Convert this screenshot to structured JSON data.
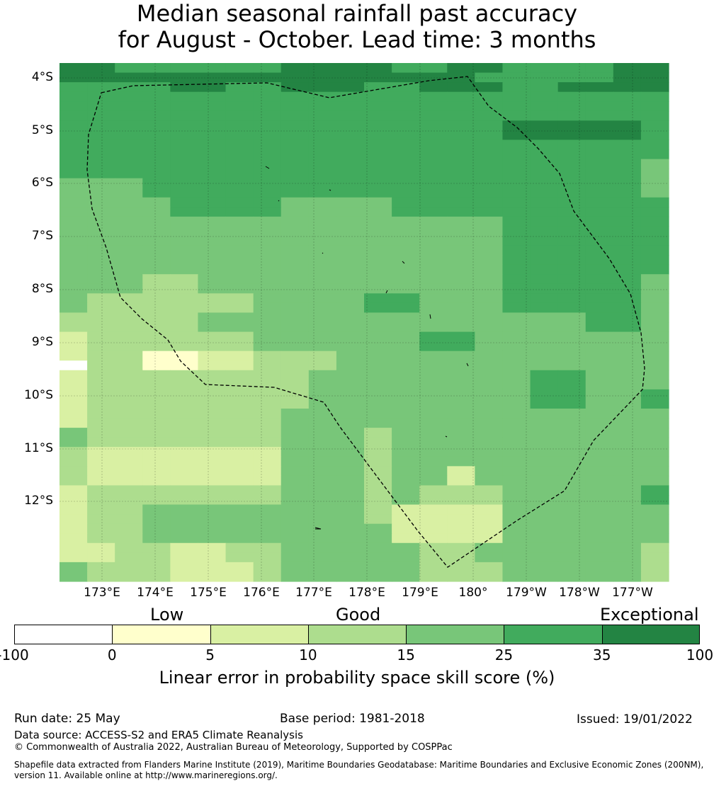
{
  "title": {
    "line1": "Median seasonal rainfall past accuracy",
    "line2": "for August - October. Lead time: 3 months"
  },
  "map": {
    "lat_labels": [
      "4°S",
      "5°S",
      "6°S",
      "7°S",
      "8°S",
      "9°S",
      "10°S",
      "11°S",
      "12°S"
    ],
    "lon_labels": [
      "173°E",
      "174°E",
      "175°E",
      "176°E",
      "177°E",
      "178°E",
      "179°E",
      "180°",
      "179°W",
      "178°W",
      "177°W"
    ],
    "colors": [
      "#ffffff",
      "#ffffcc",
      "#d9f0a3",
      "#addd8e",
      "#78c679",
      "#41ab5d",
      "#238443"
    ],
    "grid_rows": [
      "6655555566665566555566",
      "6666666666666665555566",
      "5555665566655666556666",
      "5555555555555555555555",
      "5555555555555555555555",
      "5555555555555555555555",
      "5555555555555555666665",
      "5555555555555555666665",
      "5555555555555555555555",
      "5555555555555555555555",
      "5555555555555555555554",
      "5555555555555555555554",
      "4445555555555555555554",
      "4445555555555555555554",
      "4444555544445555555555",
      "4444555544445555555555",
      "4444444444444444555555",
      "4444444444444444555555",
      "4444444444444444555555",
      "4444444444444444555555",
      "4444444444444444555555",
      "4444444444444444555555",
      "4443344444444444555554",
      "4443344444444444555554",
      "4333333444455444555554",
      "4333333444455444555554",
      "3333344444444444444554",
      "3333344444444444444554",
      "2333333444444554444444",
      "2333333444444554444444",
      "2331122333444444444444",
      "0331122333444444444444",
      "2333333334444444455444",
      "2333333334444444455444",
      "2333333334444444455445",
      "2333333334444444455445",
      "2333333344444444444444",
      "2333333344444444444444",
      "4333333344434444444444",
      "4333333344434444444444",
      "3222222244434444444444",
      "3222222244434444444444",
      "3222222244434424444444",
      "3222222244434424444444",
      "2333333344434333444445",
      "2333333344434333444445",
      "2334444444432222444444",
      "2334444444432222444444",
      "2334444444442222444444",
      "2334444444442222444444",
      "2233223344444334444443",
      "2233223344444334444443",
      "4333222344444333444443",
      "4333222344444333444443"
    ],
    "legend": {
      "words": [
        "Low",
        "Good",
        "Exceptional"
      ],
      "ticks": [
        "-100",
        "0",
        "5",
        "10",
        "15",
        "25",
        "35",
        "100"
      ],
      "colors": [
        "#ffffff",
        "#ffffcc",
        "#d9f0a3",
        "#addd8e",
        "#78c679",
        "#41ab5d",
        "#238443"
      ],
      "label": "Linear error in probability space skill score (%)"
    }
  },
  "footer": {
    "run_date": "Run date: 25 May",
    "base_period": "Base period: 1981-2018",
    "issued": "Issued: 19/01/2022",
    "data_source": "Data source: ACCESS-S2 and ERA5 Climate Reanalysis",
    "copyright": "© Commonwealth of Australia 2022, Australian Bureau of Meteorology, Supported by COSPPac",
    "shapefile_line1": "Shapefile data extracted from Flanders Marine Institute (2019), Maritime Boundaries Geodatabase: Maritime Boundaries and Exclusive Economic Zones (200NM),",
    "shapefile_line2": "version 11. Available online at http://www.marineregions.org/."
  }
}
